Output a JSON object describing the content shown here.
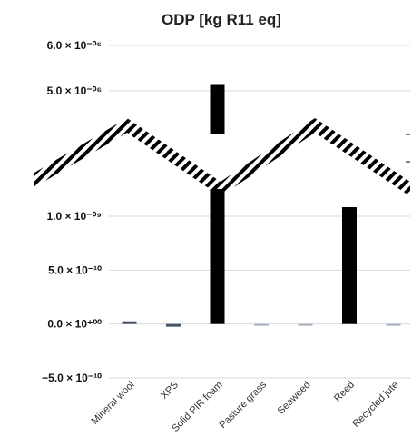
{
  "chart_data": {
    "type": "bar",
    "title": "ODP [kg R11 eq]",
    "xlabel": "",
    "ylabel": "",
    "axis_break": true,
    "grid": true,
    "bar_color": "#000000",
    "small_bar_color": "#44546a",
    "lower_segment": {
      "ylim": [
        -5e-10,
        1e-09
      ],
      "ticks": [
        "1.0 × 10⁻⁰⁹",
        "5.0 × 10⁻¹⁰",
        "0.0 × 10⁺⁰⁰",
        "−5.0 × 10⁻¹⁰"
      ],
      "tick_values": [
        1e-09,
        5e-10,
        0,
        -5e-10
      ]
    },
    "upper_segment": {
      "ticks": [
        "6.0 × 10⁻⁰⁶",
        "5.0 × 10⁻⁰⁶"
      ],
      "tick_values": [
        6e-06,
        5e-06
      ]
    },
    "categories": [
      "Mineral wool",
      "XPS",
      "Solid PIR foam",
      "Pasture grass",
      "Seaweed",
      "Reed",
      "Recycled jute"
    ],
    "values": [
      2e-11,
      -2e-11,
      5.13e-06,
      -5e-12,
      -5e-12,
      1.08e-09,
      -5e-12
    ]
  }
}
